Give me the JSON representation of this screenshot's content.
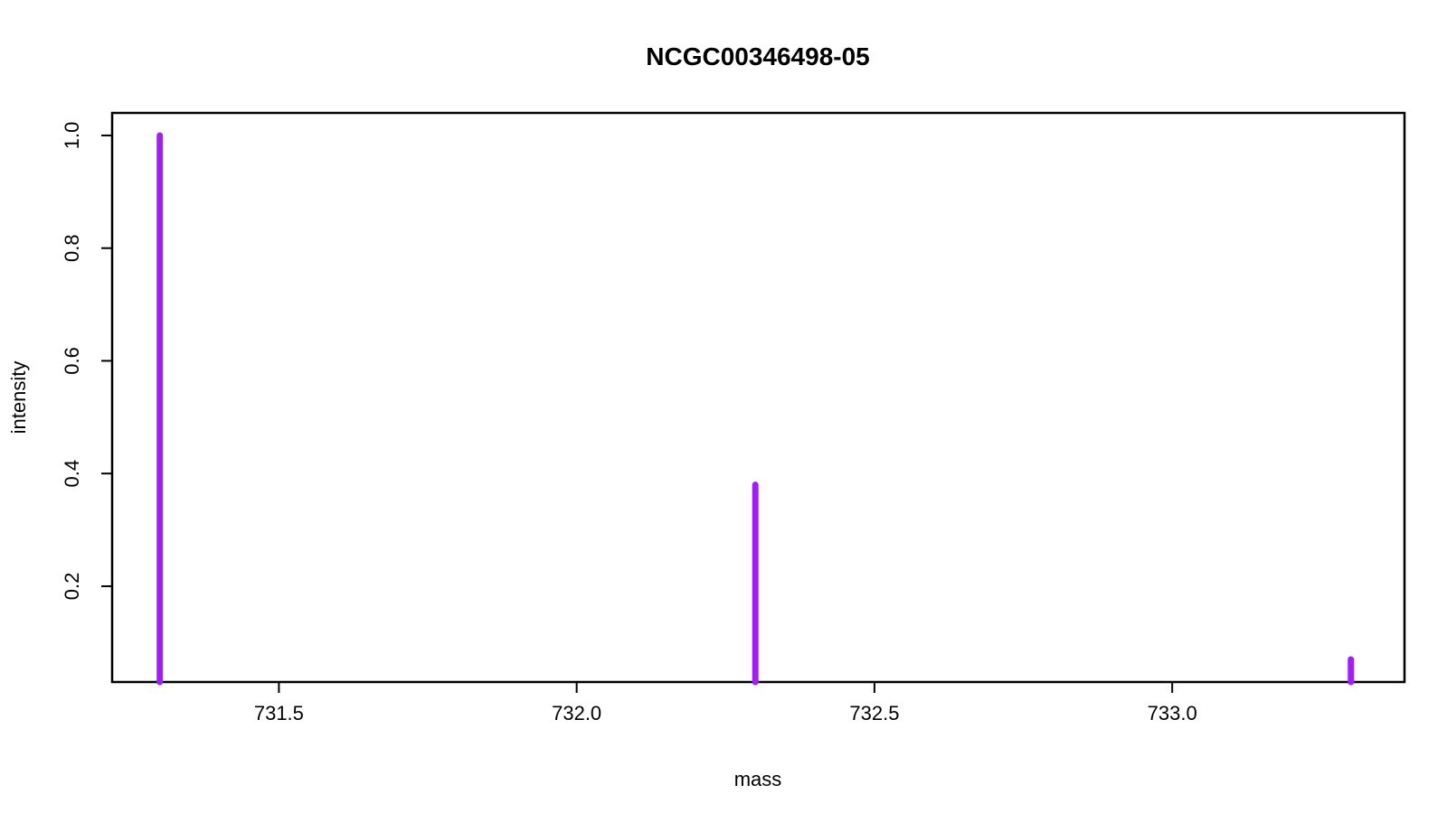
{
  "chart_data": {
    "type": "bar",
    "title": "NCGC00346498-05",
    "xlabel": "mass",
    "ylabel": "intensity",
    "xlim": [
      731.22,
      733.39
    ],
    "ylim": [
      0.03,
      1.04
    ],
    "x_ticks": [
      731.5,
      732.0,
      732.5,
      733.0
    ],
    "x_tick_labels": [
      "731.5",
      "732.0",
      "732.5",
      "733.0"
    ],
    "y_ticks": [
      0.2,
      0.4,
      0.6,
      0.8,
      1.0
    ],
    "y_tick_labels": [
      "0.2",
      "0.4",
      "0.6",
      "0.8",
      "1.0"
    ],
    "peak_color": "#a020f0",
    "grid": false,
    "legend": "none",
    "series": [
      {
        "x": [
          731.3,
          732.3,
          733.3
        ],
        "values": [
          1.0,
          0.38,
          0.07
        ]
      }
    ]
  }
}
